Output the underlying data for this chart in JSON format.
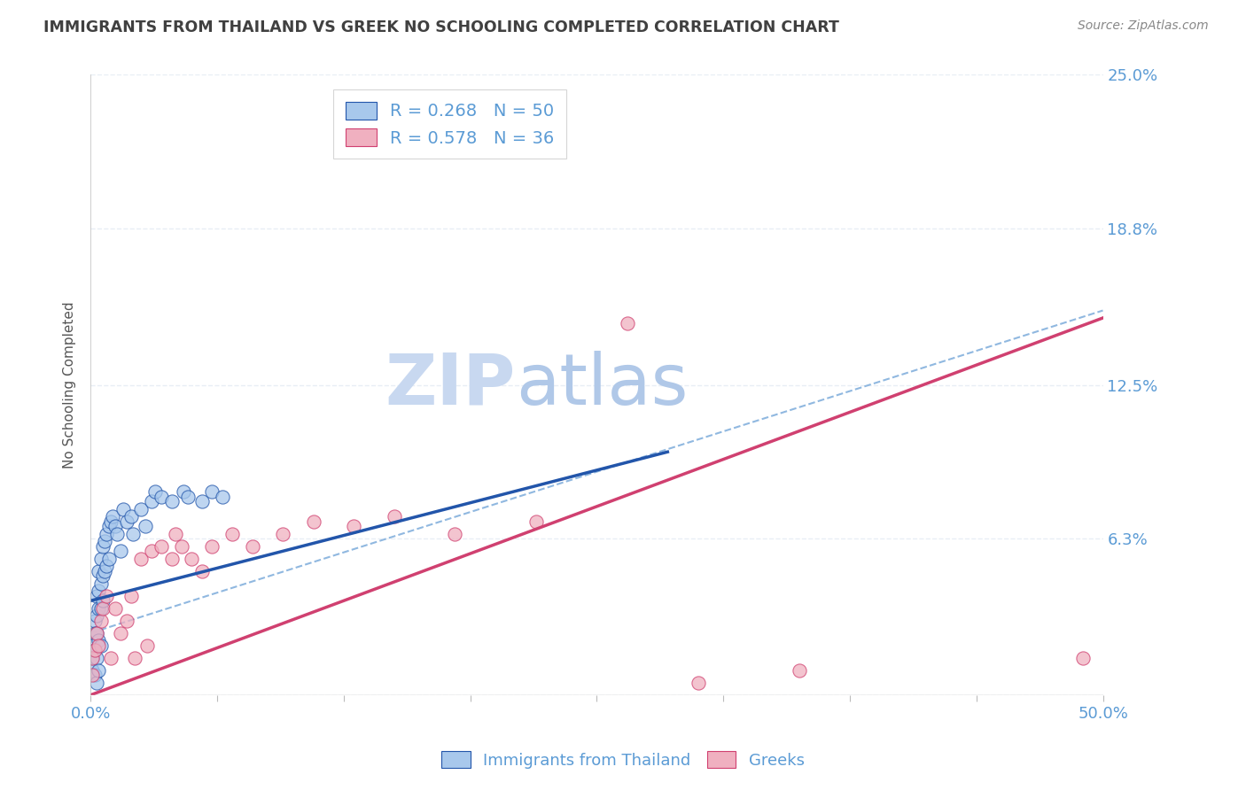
{
  "title": "IMMIGRANTS FROM THAILAND VS GREEK NO SCHOOLING COMPLETED CORRELATION CHART",
  "source": "Source: ZipAtlas.com",
  "ylabel": "No Schooling Completed",
  "legend_label_blue": "Immigrants from Thailand",
  "legend_label_pink": "Greeks",
  "legend_r_blue": "R = 0.268",
  "legend_n_blue": "N = 50",
  "legend_r_pink": "R = 0.578",
  "legend_n_pink": "N = 36",
  "xlim": [
    0.0,
    0.5
  ],
  "ylim": [
    0.0,
    0.25
  ],
  "yticks": [
    0.0,
    0.063,
    0.125,
    0.188,
    0.25
  ],
  "ytick_labels": [
    "",
    "6.3%",
    "12.5%",
    "18.8%",
    "25.0%"
  ],
  "xticks": [
    0.0,
    0.0625,
    0.125,
    0.1875,
    0.25,
    0.3125,
    0.375,
    0.4375,
    0.5
  ],
  "xtick_labels": [
    "0.0%",
    "",
    "",
    "",
    "",
    "",
    "",
    "",
    "50.0%"
  ],
  "color_blue": "#A8C8EC",
  "color_pink": "#F0B0C0",
  "color_trend_blue": "#2255AA",
  "color_trend_pink": "#D04070",
  "color_dashed": "#90B8E0",
  "watermark_zip": "ZIP",
  "watermark_atlas": "atlas",
  "watermark_color_zip": "#C8D8F0",
  "watermark_color_atlas": "#B0C8E8",
  "background_color": "#FFFFFF",
  "title_color": "#404040",
  "tick_color": "#5B9BD5",
  "grid_color": "#E8EEF5",
  "marker_size": 120,
  "blue_points_x": [
    0.001,
    0.001,
    0.001,
    0.002,
    0.002,
    0.002,
    0.002,
    0.003,
    0.003,
    0.003,
    0.003,
    0.003,
    0.004,
    0.004,
    0.004,
    0.004,
    0.004,
    0.005,
    0.005,
    0.005,
    0.005,
    0.006,
    0.006,
    0.006,
    0.007,
    0.007,
    0.008,
    0.008,
    0.009,
    0.009,
    0.01,
    0.011,
    0.012,
    0.013,
    0.015,
    0.016,
    0.018,
    0.02,
    0.021,
    0.025,
    0.027,
    0.03,
    0.032,
    0.035,
    0.04,
    0.046,
    0.048,
    0.055,
    0.06,
    0.065
  ],
  "blue_points_y": [
    0.02,
    0.015,
    0.01,
    0.03,
    0.025,
    0.018,
    0.008,
    0.04,
    0.032,
    0.025,
    0.015,
    0.005,
    0.05,
    0.042,
    0.035,
    0.022,
    0.01,
    0.055,
    0.045,
    0.035,
    0.02,
    0.06,
    0.048,
    0.038,
    0.062,
    0.05,
    0.065,
    0.052,
    0.068,
    0.055,
    0.07,
    0.072,
    0.068,
    0.065,
    0.058,
    0.075,
    0.07,
    0.072,
    0.065,
    0.075,
    0.068,
    0.078,
    0.082,
    0.08,
    0.078,
    0.082,
    0.08,
    0.078,
    0.082,
    0.08
  ],
  "pink_points_x": [
    0.001,
    0.001,
    0.002,
    0.003,
    0.004,
    0.005,
    0.006,
    0.008,
    0.01,
    0.012,
    0.015,
    0.018,
    0.02,
    0.022,
    0.025,
    0.028,
    0.03,
    0.035,
    0.04,
    0.042,
    0.045,
    0.05,
    0.055,
    0.06,
    0.07,
    0.08,
    0.095,
    0.11,
    0.13,
    0.15,
    0.18,
    0.22,
    0.265,
    0.3,
    0.35,
    0.49
  ],
  "pink_points_y": [
    0.015,
    0.008,
    0.018,
    0.025,
    0.02,
    0.03,
    0.035,
    0.04,
    0.015,
    0.035,
    0.025,
    0.03,
    0.04,
    0.015,
    0.055,
    0.02,
    0.058,
    0.06,
    0.055,
    0.065,
    0.06,
    0.055,
    0.05,
    0.06,
    0.065,
    0.06,
    0.065,
    0.07,
    0.068,
    0.072,
    0.065,
    0.07,
    0.15,
    0.005,
    0.01,
    0.015
  ],
  "blue_trend_x0": 0.0,
  "blue_trend_x1": 0.285,
  "blue_trend_y0": 0.038,
  "blue_trend_y1": 0.098,
  "dashed_trend_x0": 0.0,
  "dashed_trend_x1": 0.5,
  "dashed_trend_y0": 0.025,
  "dashed_trend_y1": 0.155,
  "pink_trend_x0": 0.0,
  "pink_trend_x1": 0.5,
  "pink_trend_y0": 0.0,
  "pink_trend_y1": 0.152
}
